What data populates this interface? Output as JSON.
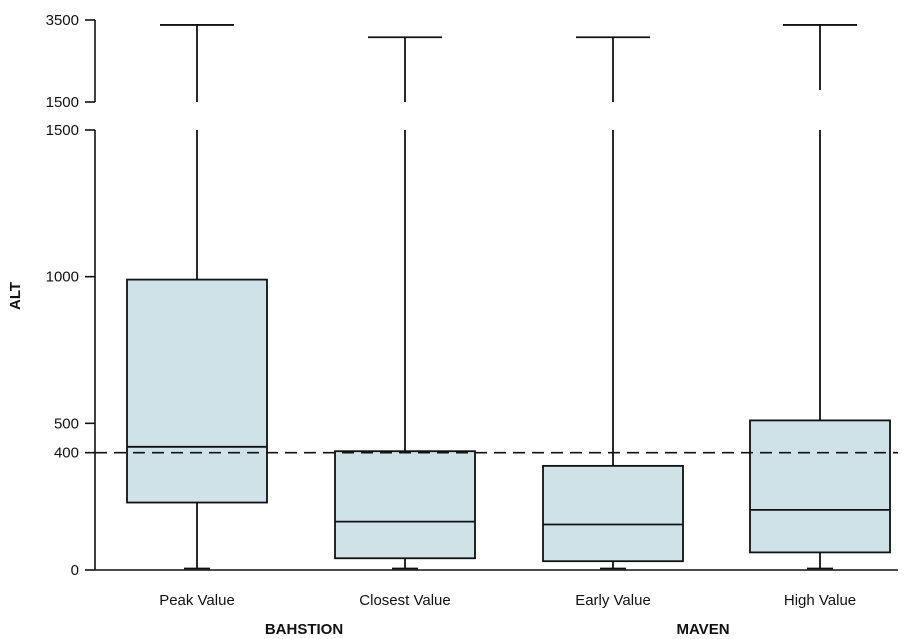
{
  "chart_data": {
    "type": "boxplot",
    "ylabel": "ALT",
    "y_axis": {
      "broken": true,
      "lower_segment_range": [
        0,
        1500
      ],
      "upper_segment_range": [
        1500,
        3500
      ],
      "lower_ticks": [
        0,
        400,
        500,
        1000,
        1500
      ],
      "upper_ticks": [
        1500,
        3500
      ],
      "lower_tick_labels": [
        "0",
        "400",
        "500",
        "1000",
        "1500"
      ],
      "upper_tick_labels": [
        "1500",
        "3500"
      ]
    },
    "reference_line": {
      "value": 400,
      "style": "dashed"
    },
    "categories": [
      "Peak Value",
      "Closest Value",
      "Early Value",
      "High Value"
    ],
    "groups": [
      {
        "label": "BAHSTION",
        "categories": [
          "Peak Value",
          "Closest Value"
        ]
      },
      {
        "label": "MAVEN",
        "categories": [
          "Early Value",
          "High Value"
        ]
      }
    ],
    "boxes": [
      {
        "category": "Peak Value",
        "min": 5,
        "q1": 230,
        "median": 420,
        "q3": 990,
        "max": 3380
      },
      {
        "category": "Closest Value",
        "min": 5,
        "q1": 40,
        "median": 165,
        "q3": 405,
        "max": 3080
      },
      {
        "category": "Early Value",
        "min": 5,
        "q1": 30,
        "median": 155,
        "q3": 355,
        "max": 3080
      },
      {
        "category": "High Value",
        "min": 5,
        "q1": 60,
        "median": 205,
        "q3": 510,
        "max": 3380
      }
    ],
    "box_fill": "#cfe2e7",
    "line_color": "#111111"
  }
}
